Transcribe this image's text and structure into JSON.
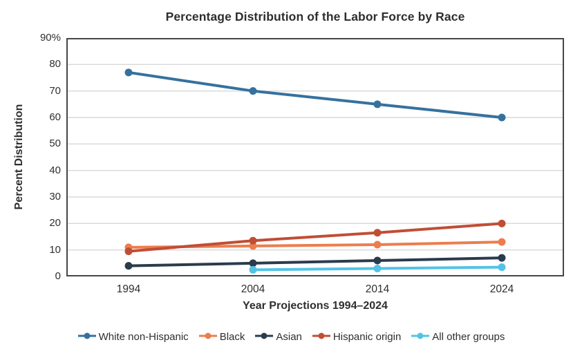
{
  "chart_data": {
    "type": "line",
    "title": "Percentage Distribution of the Labor Force by Race",
    "xlabel": "Year Projections 1994–2024",
    "ylabel": "Percent Distribution",
    "categories": [
      "1994",
      "2004",
      "2014",
      "2024"
    ],
    "ylim": [
      0,
      90
    ],
    "grid": "horizontal-only",
    "legend_position": "bottom",
    "y_ticks": [
      {
        "value": 90,
        "label": "90%"
      },
      {
        "value": 80,
        "label": "80"
      },
      {
        "value": 70,
        "label": "70"
      },
      {
        "value": 60,
        "label": "60"
      },
      {
        "value": 50,
        "label": "50"
      },
      {
        "value": 40,
        "label": "40"
      },
      {
        "value": 30,
        "label": "30"
      },
      {
        "value": 20,
        "label": "20"
      },
      {
        "value": 10,
        "label": "10"
      },
      {
        "value": 0,
        "label": "0"
      }
    ],
    "series": [
      {
        "name": "White non-Hispanic",
        "color": "#35719E",
        "values": [
          77,
          70,
          65,
          60
        ]
      },
      {
        "name": "Black",
        "color": "#EC7D4E",
        "values": [
          11,
          11.5,
          12,
          13
        ]
      },
      {
        "name": "Asian",
        "color": "#2A3B4D",
        "values": [
          4,
          5,
          6,
          7
        ]
      },
      {
        "name": "Hispanic origin",
        "color": "#C04E35",
        "values": [
          9.5,
          13.5,
          16.5,
          20
        ]
      },
      {
        "name": "All other groups",
        "color": "#52C3E6",
        "values": [
          null,
          2.5,
          3,
          3.5
        ]
      }
    ]
  },
  "styles": {
    "grid_color": "#D8D8D8",
    "frame_color": "#454545",
    "text_color": "#2E2E2E",
    "background": "#FFFFFF"
  }
}
